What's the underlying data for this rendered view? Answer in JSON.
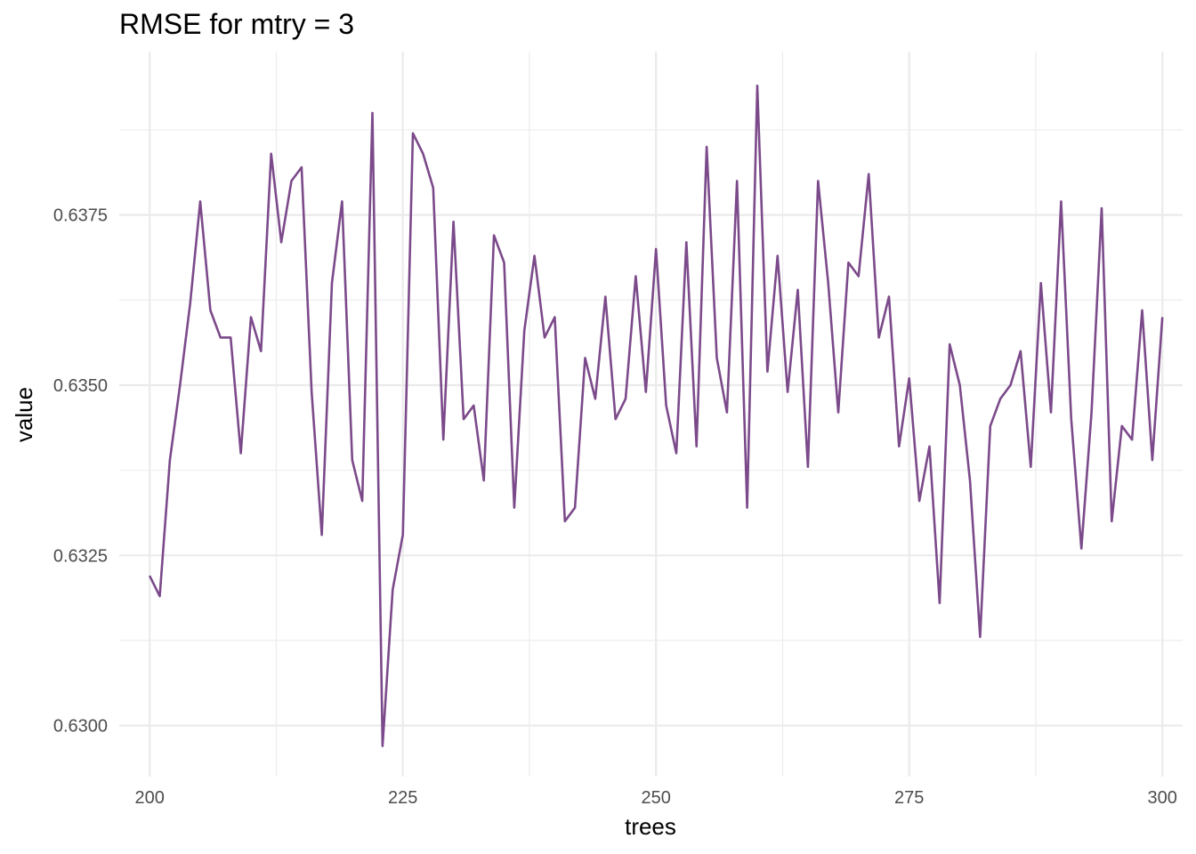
{
  "chart_data": {
    "type": "line",
    "title": "RMSE for mtry = 3",
    "xlabel": "trees",
    "ylabel": "value",
    "xlim": [
      197,
      302
    ],
    "ylim": [
      0.62925,
      0.6399
    ],
    "x_ticks": [
      200,
      225,
      250,
      275,
      300
    ],
    "x_tick_labels": [
      "200",
      "225",
      "250",
      "275",
      "300"
    ],
    "y_ticks": [
      0.63,
      0.6325,
      0.635,
      0.6375
    ],
    "y_tick_labels": [
      "0.6300",
      "0.6325",
      "0.6350",
      "0.6375"
    ],
    "grid": true,
    "legend": "none",
    "colors": {
      "line": "#7b4a8a",
      "grid": "#ebebeb",
      "background": "#ffffff"
    },
    "x": [
      200,
      201,
      202,
      203,
      204,
      205,
      206,
      207,
      208,
      209,
      210,
      211,
      212,
      213,
      214,
      215,
      216,
      217,
      218,
      219,
      220,
      221,
      222,
      223,
      224,
      225,
      226,
      227,
      228,
      229,
      230,
      231,
      232,
      233,
      234,
      235,
      236,
      237,
      238,
      239,
      240,
      241,
      242,
      243,
      244,
      245,
      246,
      247,
      248,
      249,
      250,
      251,
      252,
      253,
      254,
      255,
      256,
      257,
      258,
      259,
      260,
      261,
      262,
      263,
      264,
      265,
      266,
      267,
      268,
      269,
      270,
      271,
      272,
      273,
      274,
      275,
      276,
      277,
      278,
      279,
      280,
      281,
      282,
      283,
      284,
      285,
      286,
      287,
      288,
      289,
      290,
      291,
      292,
      293,
      294,
      295,
      296,
      297,
      298,
      299,
      300
    ],
    "series": [
      {
        "values": [
          0.6322,
          0.6319,
          0.6339,
          0.635,
          0.6362,
          0.6377,
          0.6361,
          0.6357,
          0.6357,
          0.634,
          0.636,
          0.6355,
          0.6384,
          0.6371,
          0.638,
          0.6382,
          0.6349,
          0.6328,
          0.6365,
          0.6377,
          0.6339,
          0.6333,
          0.639,
          0.6297,
          0.632,
          0.6328,
          0.6387,
          0.6384,
          0.6379,
          0.6342,
          0.6374,
          0.6345,
          0.6347,
          0.6336,
          0.6372,
          0.6368,
          0.6332,
          0.6358,
          0.6369,
          0.6357,
          0.636,
          0.633,
          0.6332,
          0.6354,
          0.6348,
          0.6363,
          0.6345,
          0.6348,
          0.6366,
          0.6349,
          0.637,
          0.6347,
          0.634,
          0.6371,
          0.6341,
          0.6385,
          0.6354,
          0.6346,
          0.638,
          0.6332,
          0.6394,
          0.6352,
          0.6369,
          0.6349,
          0.6364,
          0.6338,
          0.638,
          0.6365,
          0.6346,
          0.6368,
          0.6366,
          0.6381,
          0.6357,
          0.6363,
          0.6341,
          0.6351,
          0.6333,
          0.6341,
          0.6318,
          0.6356,
          0.635,
          0.6336,
          0.6313,
          0.6344,
          0.6348,
          0.635,
          0.6355,
          0.6338,
          0.6365,
          0.6346,
          0.6377,
          0.6345,
          0.6326,
          0.6346,
          0.6376,
          0.633,
          0.6344,
          0.6342,
          0.6361,
          0.6339,
          0.636
        ]
      }
    ]
  }
}
